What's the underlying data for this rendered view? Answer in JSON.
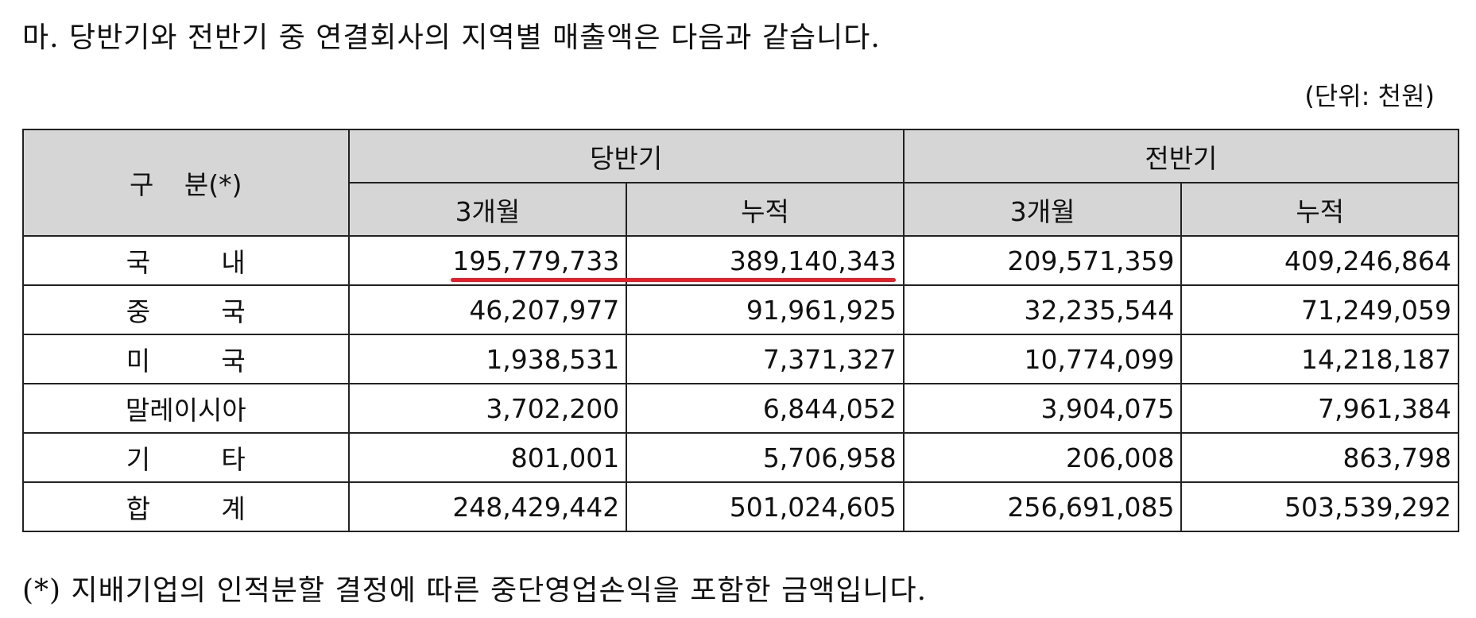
{
  "heading": "마. 당반기와 전반기 중 연결회사의 지역별 매출액은 다음과 같습니다.",
  "unit_note": "(단위: 천원)",
  "table": {
    "category_header": "구 분(*)",
    "period_headers": [
      "당반기",
      "전반기"
    ],
    "sub_headers": [
      "3개월",
      "누적",
      "3개월",
      "누적"
    ],
    "rows": [
      {
        "label": [
          "국",
          "내"
        ],
        "values": [
          "195,779,733",
          "389,140,343",
          "209,571,359",
          "409,246,864"
        ]
      },
      {
        "label": [
          "중",
          "국"
        ],
        "values": [
          "46,207,977",
          "91,961,925",
          "32,235,544",
          "71,249,059"
        ]
      },
      {
        "label": [
          "미",
          "국"
        ],
        "values": [
          "1,938,531",
          "7,371,327",
          "10,774,099",
          "14,218,187"
        ]
      },
      {
        "label": [
          "말레이시아"
        ],
        "values": [
          "3,702,200",
          "6,844,052",
          "3,904,075",
          "7,961,384"
        ]
      },
      {
        "label": [
          "기",
          "타"
        ],
        "values": [
          "801,001",
          "5,706,958",
          "206,008",
          "863,798"
        ]
      },
      {
        "label": [
          "합",
          "계"
        ],
        "values": [
          "248,429,442",
          "501,024,605",
          "256,691,085",
          "503,539,292"
        ]
      }
    ]
  },
  "highlight_color": "#e0202a",
  "footnote": "(*) 지배기업의 인적분할 결정에 따른 중단영업손익을 포함한 금액입니다."
}
